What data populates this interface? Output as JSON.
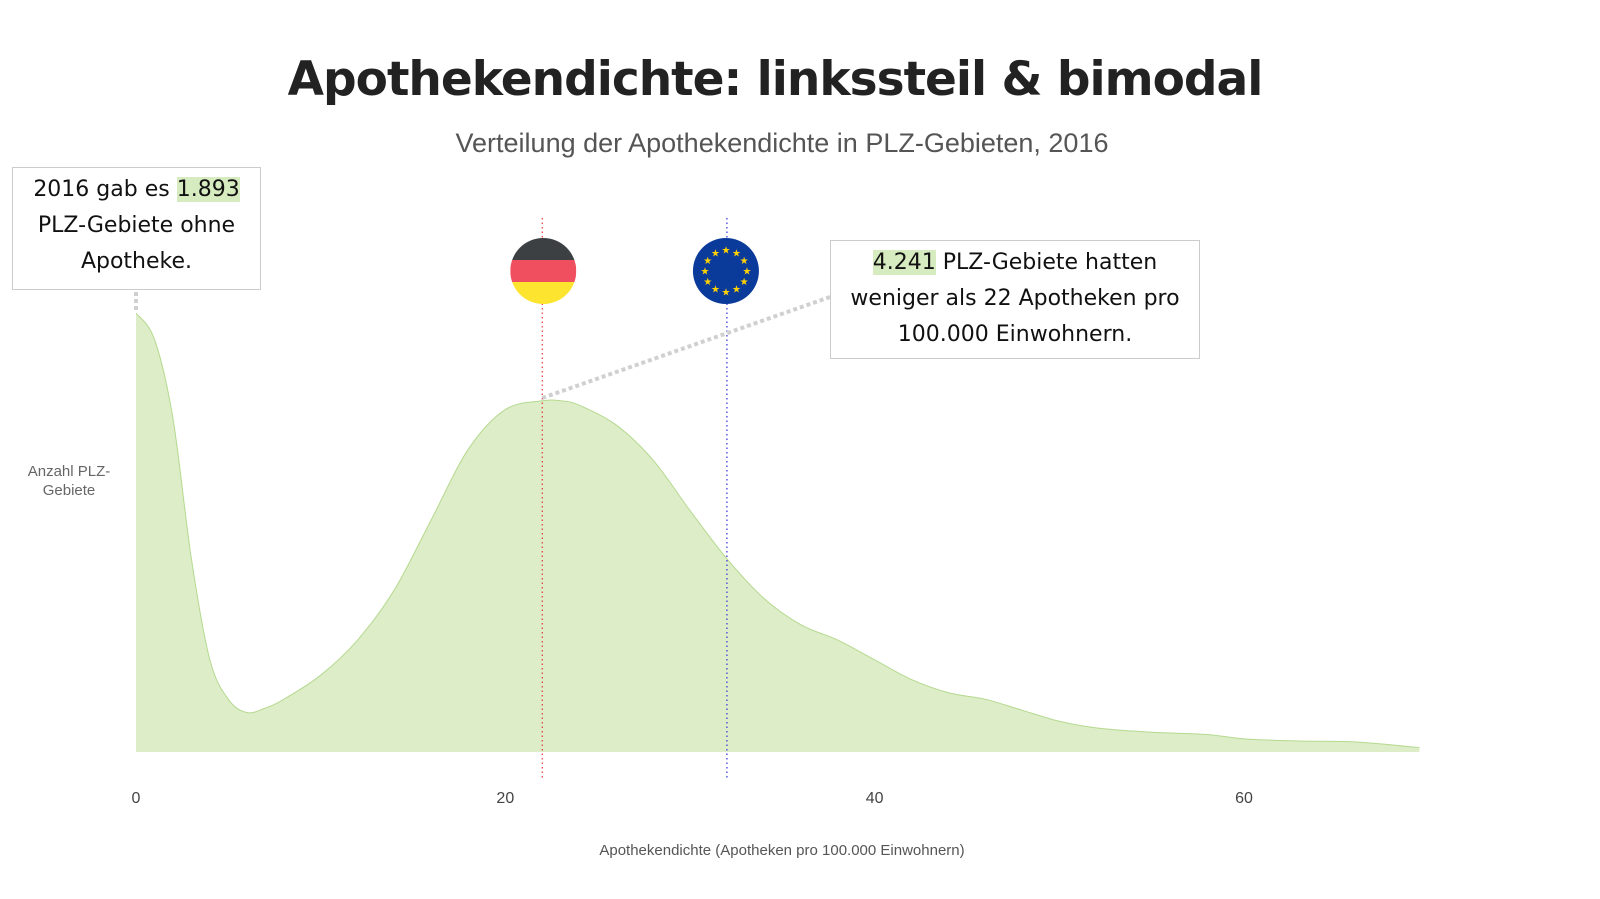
{
  "title": "Apothekendichte: linkssteil & bimodal",
  "subtitle": "Verteilung der Apothekendichte in PLZ-Gebieten, 2016",
  "annotations": {
    "left": {
      "pre": "2016 gab es ",
      "highlight": "1.893",
      "post": " PLZ-Gebiete ohne Apotheke."
    },
    "right": {
      "highlight": "4.241",
      "post": " PLZ-Gebiete hatten weniger als 22 Apotheken pro 100.000 Einwohnern."
    }
  },
  "colors": {
    "fill": "#dcedc8",
    "line": "#b5d98f",
    "germany_line": "#e53935",
    "eu_line": "#3030e0",
    "highlight": "#d6ebc0"
  },
  "chart_data": {
    "type": "area",
    "title": "Apothekendichte: linkssteil & bimodal",
    "subtitle": "Verteilung der Apothekendichte in PLZ-Gebieten, 2016",
    "xlabel": "Apothekendichte (Apotheken pro 100.000 Einwohnern)",
    "ylabel": "Anzahl PLZ-Gebiete",
    "xlim": [
      0,
      70
    ],
    "ylim": [
      0,
      1
    ],
    "xticks": [
      0,
      20,
      40,
      60
    ],
    "grid": false,
    "x": [
      0,
      1,
      2,
      3,
      4,
      5,
      6,
      7,
      8,
      10,
      12,
      14,
      16,
      18,
      20,
      22,
      23,
      24,
      26,
      28,
      30,
      32,
      34,
      36,
      38,
      40,
      42,
      44,
      46,
      48,
      50,
      52,
      55,
      58,
      60,
      63,
      66,
      69.5
    ],
    "y": [
      1.0,
      0.94,
      0.76,
      0.44,
      0.21,
      0.12,
      0.09,
      0.1,
      0.12,
      0.175,
      0.255,
      0.37,
      0.53,
      0.69,
      0.78,
      0.8,
      0.8,
      0.79,
      0.745,
      0.665,
      0.55,
      0.44,
      0.35,
      0.29,
      0.255,
      0.21,
      0.165,
      0.135,
      0.12,
      0.095,
      0.07,
      0.055,
      0.045,
      0.04,
      0.03,
      0.025,
      0.023,
      0.01
    ],
    "reference_lines": [
      {
        "name": "Deutschland",
        "x": 22,
        "icon": "germany-flag-icon"
      },
      {
        "name": "EU",
        "x": 32,
        "icon": "eu-flag-icon"
      }
    ]
  }
}
